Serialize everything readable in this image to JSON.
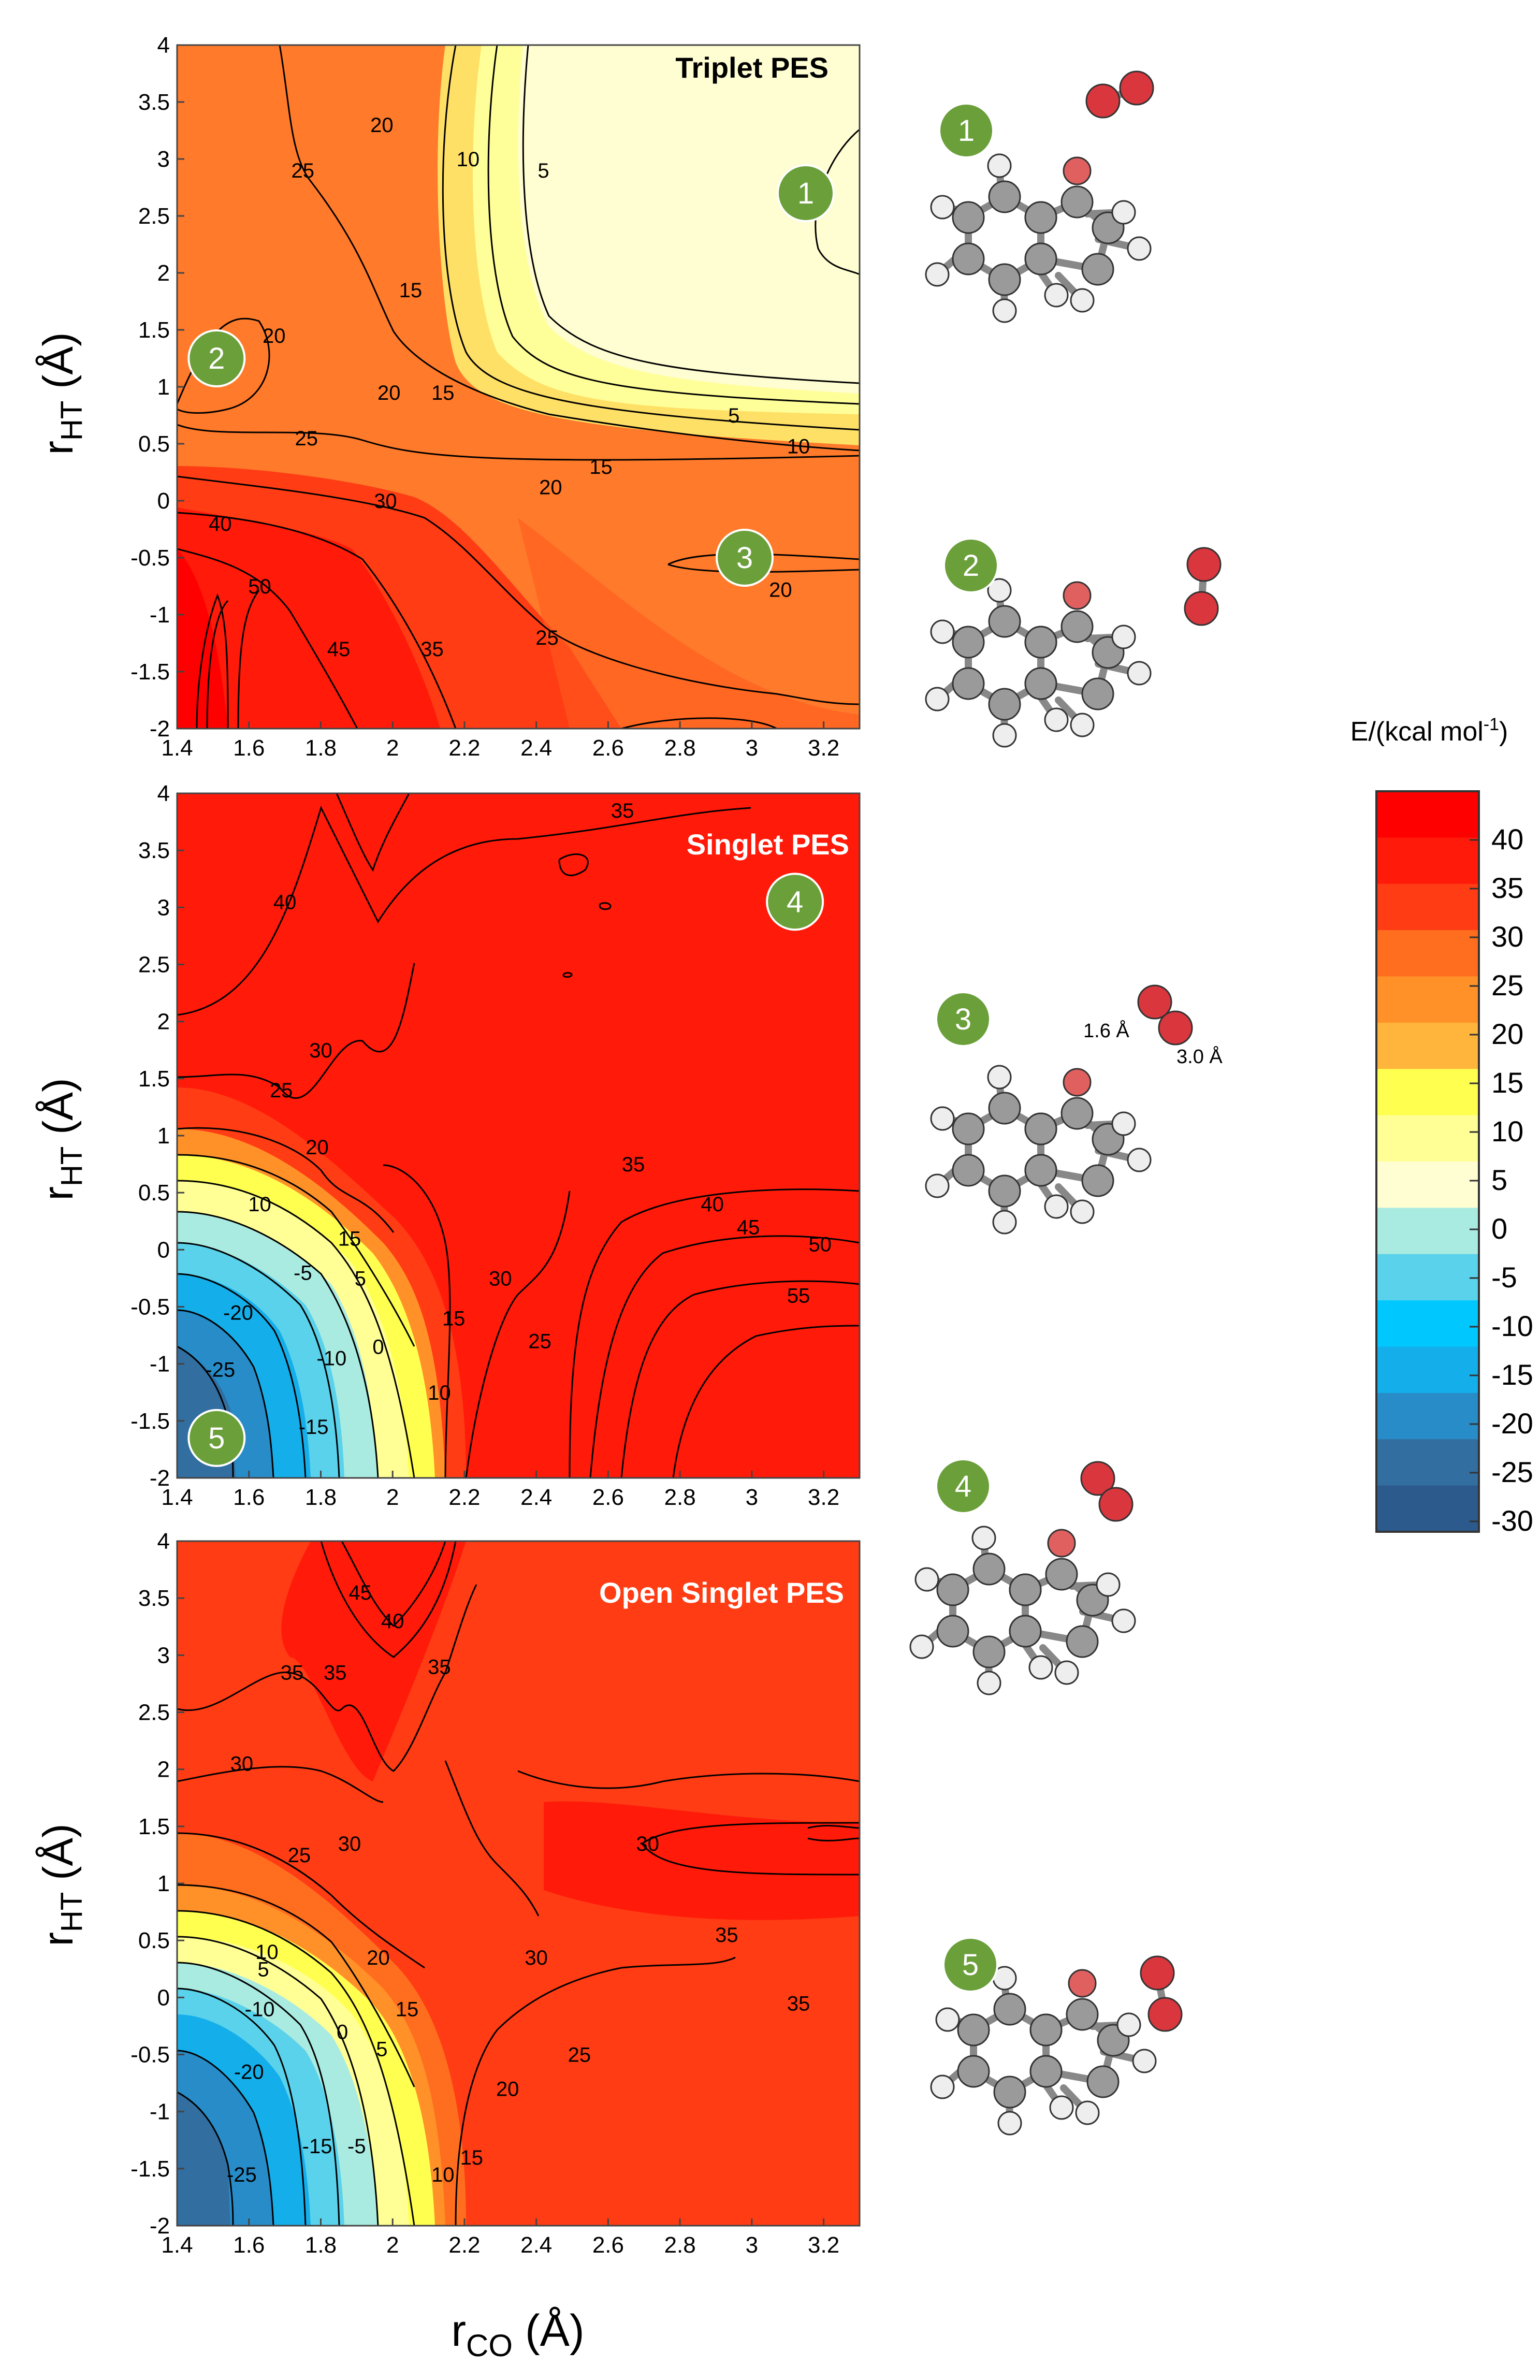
{
  "figure": {
    "x_axis_label_main": "r",
    "x_axis_label_sub": "CO",
    "x_axis_unit": " (Å)",
    "y_axis_label_main": "r",
    "y_axis_label_sub": "HT",
    "y_axis_unit": " (Å)",
    "colorbar_title": "E/(kcal mol",
    "colorbar_title_sup": "-1",
    "colorbar_title_end": ")"
  },
  "chart_data": [
    {
      "type": "heatmap",
      "title": "Triplet PES",
      "xlabel": "rCO (Å)",
      "ylabel": "rHT (Å)",
      "xlim": [
        1.4,
        3.3
      ],
      "ylim": [
        -2,
        4
      ],
      "x_ticks": [
        "1.4",
        "1.6",
        "1.8",
        "2",
        "2.2",
        "2.4",
        "2.6",
        "2.8",
        "3",
        "3.2"
      ],
      "y_ticks": [
        "4",
        "3.5",
        "3",
        "2.5",
        "2",
        "1.5",
        "1",
        "0.5",
        "0",
        "-0.5",
        "-1",
        "-1.5",
        "-2"
      ],
      "contour_labels": [
        {
          "text": "20",
          "x": 1.97,
          "y": 3.3
        },
        {
          "text": "25",
          "x": 1.75,
          "y": 2.9
        },
        {
          "text": "10",
          "x": 2.21,
          "y": 3.0
        },
        {
          "text": "5",
          "x": 2.42,
          "y": 2.9
        },
        {
          "text": "15",
          "x": 2.05,
          "y": 1.85
        },
        {
          "text": "20",
          "x": 1.67,
          "y": 1.45
        },
        {
          "text": "20",
          "x": 1.99,
          "y": 0.95
        },
        {
          "text": "15",
          "x": 2.14,
          "y": 0.95
        },
        {
          "text": "5",
          "x": 2.95,
          "y": 0.75
        },
        {
          "text": "10",
          "x": 3.13,
          "y": 0.48
        },
        {
          "text": "25",
          "x": 1.76,
          "y": 0.55
        },
        {
          "text": "15",
          "x": 2.58,
          "y": 0.3
        },
        {
          "text": "20",
          "x": 2.44,
          "y": 0.12
        },
        {
          "text": "30",
          "x": 1.98,
          "y": 0.0
        },
        {
          "text": "40",
          "x": 1.52,
          "y": -0.2
        },
        {
          "text": "50",
          "x": 1.63,
          "y": -0.75
        },
        {
          "text": "20",
          "x": 3.08,
          "y": -0.78
        },
        {
          "text": "45",
          "x": 1.85,
          "y": -1.3
        },
        {
          "text": "35",
          "x": 2.11,
          "y": -1.3
        },
        {
          "text": "25",
          "x": 2.43,
          "y": -1.2
        }
      ],
      "markers": [
        {
          "label": "1",
          "x": 3.15,
          "y": 2.7
        },
        {
          "label": "2",
          "x": 1.51,
          "y": 1.25
        },
        {
          "label": "3",
          "x": 2.98,
          "y": -0.5
        }
      ]
    },
    {
      "type": "heatmap",
      "title": "Singlet PES",
      "xlabel": "rCO (Å)",
      "ylabel": "rHT (Å)",
      "xlim": [
        1.4,
        3.3
      ],
      "ylim": [
        -2,
        4
      ],
      "x_ticks": [
        "1.4",
        "1.6",
        "1.8",
        "2",
        "2.2",
        "2.4",
        "2.6",
        "2.8",
        "3",
        "3.2"
      ],
      "y_ticks": [
        "4",
        "3.5",
        "3",
        "2.5",
        "2",
        "1.5",
        "1",
        "0.5",
        "0",
        "-0.5",
        "-1",
        "-1.5",
        "-2"
      ],
      "contour_labels": [
        {
          "text": "35",
          "x": 2.64,
          "y": 3.85
        },
        {
          "text": "40",
          "x": 1.7,
          "y": 3.05
        },
        {
          "text": "30",
          "x": 1.8,
          "y": 1.75
        },
        {
          "text": "25",
          "x": 1.69,
          "y": 1.4
        },
        {
          "text": "20",
          "x": 1.79,
          "y": 0.9
        },
        {
          "text": "10",
          "x": 1.63,
          "y": 0.4
        },
        {
          "text": "15",
          "x": 1.88,
          "y": 0.1
        },
        {
          "text": "-5",
          "x": 1.75,
          "y": -0.2
        },
        {
          "text": "5",
          "x": 1.91,
          "y": -0.25
        },
        {
          "text": "-20",
          "x": 1.57,
          "y": -0.55
        },
        {
          "text": "-10",
          "x": 1.83,
          "y": -0.95
        },
        {
          "text": "0",
          "x": 1.96,
          "y": -0.85
        },
        {
          "text": "-25",
          "x": 1.52,
          "y": -1.05
        },
        {
          "text": "-15",
          "x": 1.78,
          "y": -1.55
        },
        {
          "text": "10",
          "x": 2.13,
          "y": -1.25
        },
        {
          "text": "15",
          "x": 2.17,
          "y": -0.6
        },
        {
          "text": "30",
          "x": 2.3,
          "y": -0.25
        },
        {
          "text": "25",
          "x": 2.41,
          "y": -0.8
        },
        {
          "text": "35",
          "x": 2.67,
          "y": 0.75
        },
        {
          "text": "40",
          "x": 2.89,
          "y": 0.4
        },
        {
          "text": "45",
          "x": 2.99,
          "y": 0.2
        },
        {
          "text": "50",
          "x": 3.19,
          "y": 0.05
        },
        {
          "text": "55",
          "x": 3.13,
          "y": -0.4
        }
      ],
      "markers": [
        {
          "label": "4",
          "x": 3.12,
          "y": 3.05
        },
        {
          "label": "5",
          "x": 1.51,
          "y": -1.65
        }
      ]
    },
    {
      "type": "heatmap",
      "title": "Open Singlet PES",
      "xlabel": "rCO (Å)",
      "ylabel": "rHT (Å)",
      "xlim": [
        1.4,
        3.3
      ],
      "ylim": [
        -2,
        4
      ],
      "x_ticks": [
        "1.4",
        "1.6",
        "1.8",
        "2",
        "2.2",
        "2.4",
        "2.6",
        "2.8",
        "3",
        "3.2"
      ],
      "y_ticks": [
        "4",
        "3.5",
        "3",
        "2.5",
        "2",
        "1.5",
        "1",
        "0.5",
        "0",
        "-0.5",
        "-1",
        "-1.5",
        "-2"
      ],
      "contour_labels": [
        {
          "text": "45",
          "x": 1.91,
          "y": 3.55
        },
        {
          "text": "40",
          "x": 2.0,
          "y": 3.3
        },
        {
          "text": "35",
          "x": 1.72,
          "y": 2.85
        },
        {
          "text": "35",
          "x": 1.84,
          "y": 2.85
        },
        {
          "text": "35",
          "x": 2.13,
          "y": 2.9
        },
        {
          "text": "30",
          "x": 1.58,
          "y": 2.05
        },
        {
          "text": "30",
          "x": 1.88,
          "y": 1.35
        },
        {
          "text": "30",
          "x": 2.71,
          "y": 1.35
        },
        {
          "text": "25",
          "x": 1.74,
          "y": 1.25
        },
        {
          "text": "30",
          "x": 2.4,
          "y": 0.35
        },
        {
          "text": "35",
          "x": 2.93,
          "y": 0.55
        },
        {
          "text": "35",
          "x": 3.13,
          "y": -0.05
        },
        {
          "text": "20",
          "x": 1.96,
          "y": 0.35
        },
        {
          "text": "10",
          "x": 1.65,
          "y": 0.4
        },
        {
          "text": "5",
          "x": 1.64,
          "y": 0.25
        },
        {
          "text": "-10",
          "x": 1.63,
          "y": -0.1
        },
        {
          "text": "15",
          "x": 2.04,
          "y": -0.1
        },
        {
          "text": "0",
          "x": 1.86,
          "y": -0.3
        },
        {
          "text": "5",
          "x": 1.97,
          "y": -0.45
        },
        {
          "text": "-20",
          "x": 1.6,
          "y": -0.65
        },
        {
          "text": "25",
          "x": 2.52,
          "y": -0.5
        },
        {
          "text": "20",
          "x": 2.32,
          "y": -0.8
        },
        {
          "text": "-15",
          "x": 1.79,
          "y": -1.3
        },
        {
          "text": "-5",
          "x": 1.9,
          "y": -1.3
        },
        {
          "text": "15",
          "x": 2.22,
          "y": -1.4
        },
        {
          "text": "10",
          "x": 2.14,
          "y": -1.55
        },
        {
          "text": "-25",
          "x": 1.58,
          "y": -1.55
        }
      ]
    }
  ],
  "colorbar": {
    "labels": [
      "40",
      "35",
      "30",
      "25",
      "20",
      "15",
      "10",
      "5",
      "0",
      "-5",
      "-10",
      "-15",
      "-20",
      "-25",
      "-30"
    ],
    "colors": [
      "#ff0000",
      "#ff1a0a",
      "#ff3c14",
      "#ff6e1e",
      "#ff9128",
      "#ffb43c",
      "#ffff50",
      "#ffff96",
      "#fffdd2",
      "#aaebe1",
      "#5ad2eb",
      "#00c8ff",
      "#14afeb",
      "#288cc8",
      "#326ea0",
      "#2d5a8c"
    ]
  },
  "structures": {
    "labels": [
      "1",
      "2",
      "3",
      "4",
      "5"
    ],
    "bond_label_a": "1.6 Å",
    "bond_label_b": "3.0 Å"
  }
}
